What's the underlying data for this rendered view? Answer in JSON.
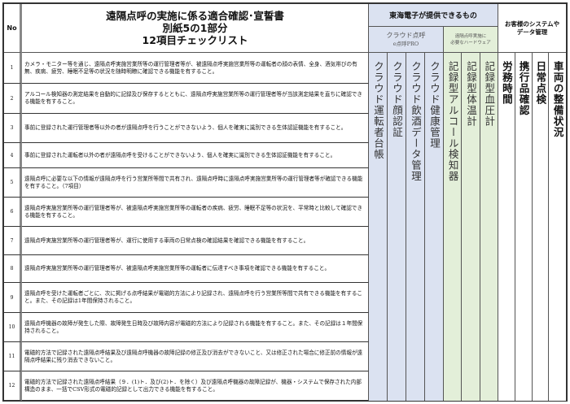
{
  "header": {
    "no_label": "No",
    "title_lines": [
      "遠隔点呼の実施に係る適合確認･宣誓書",
      "別紙5の1部分",
      "12項目チェックリスト"
    ],
    "provider_group": "東海電子が提供できるもの",
    "cloud_group": [
      "クラウド点呼",
      "e点呼PRO"
    ],
    "hardware_group": [
      "遠隔点呼実施に",
      "必要なハードウェア"
    ],
    "customer_group": [
      "お客様のシステムや",
      "データ管理"
    ]
  },
  "columns": {
    "cloud": [
      "クラウド運転者台帳",
      "クラウド顔認証",
      "クラウド飲酒データ管理",
      "クラウド健康管理"
    ],
    "hardware": [
      "記録型アルコール検知器",
      "記録型体温計",
      "記録型血圧計"
    ],
    "customer": [
      "労務時間",
      "携行品確認",
      "日常点検",
      "車両の整備状況"
    ]
  },
  "colors": {
    "cloud": "#dbe2f1",
    "hardware": "#e3efd9",
    "customer": "#ffffff"
  },
  "rows": [
    {
      "no": "1",
      "text": "カメラ・モニター等を通じ、遠隔点呼実施営業所等の運行管理者等が、被遠隔点呼実施営業所等の運転者の顔の表情、全身、酒気帯びの有無、疾病、疲労、睡眠不足等の状況を随時明瞭に確認できる機能を有すること。"
    },
    {
      "no": "2",
      "text": "アルコール検知器の測定結果を自動的に記録及び保存するとともに、遠隔点呼実施営業所等の運行管理者等が当該測定結果を直ちに確認できる機能を有すること。"
    },
    {
      "no": "3",
      "text": "事前に登録された運行管理者等以外の者が遠隔点呼を行うことができないよう、個人を確実に識別できる生体認証機能を有すること。"
    },
    {
      "no": "4",
      "text": "事前に登録された運転者以外の者が遠隔点呼を受けることができないよう、個人を確実に識別できる生体認証機能を有すること。"
    },
    {
      "no": "5",
      "text": "遠隔点呼に必要な以下の情報が遠隔点呼を行う営業所等間で共有され、遠隔点呼時に遠隔点呼実施営業所等の運行管理者等が確認できる機能を有すること。（7項目）"
    },
    {
      "no": "6",
      "text": "遠隔点呼実施営業所等の運行管理者等が、被遠隔点呼実施営業所等の運転者の疾病、疲労、睡眠不足等の状況を、平常時と比較して確認できる機能を有すること。"
    },
    {
      "no": "7",
      "text": "遠隔点呼実施営業所等の運行管理者等が、運行に使用する車両の日常点検の確認結果を確認できる機能を有すること。"
    },
    {
      "no": "8",
      "text": "遠隔点呼実施営業所等の運行管理者等が、被遠隔点呼実施営業所等の運転者に伝達すべき事項を確認できる機能を有すること。"
    },
    {
      "no": "9",
      "text": "遠隔点呼を受けた運転者ごとに、次に掲げる点呼結果が電磁的方法により記録され、遠隔点呼を行う営業所等間で共有できる機能を有すること。また、その記録は1年間保持されること。"
    },
    {
      "no": "10",
      "text": "遠隔点呼機器の故障が発生した際、故障発生日時及び故障内容が電磁的方法により記録される機能を有すること。また、その記録は１年間保持されること。"
    },
    {
      "no": "11",
      "text": "電磁的方法で記録された遠隔点呼結果及び遠隔点呼機器の故障記録の修正及び消去ができないこと、又は修正された場合に修正前の情報が遠隔点呼結果に残り消去できないこと。"
    },
    {
      "no": "12",
      "text": "電磁的方法で記録された遠隔点呼結果（９．(1)ト．及び(2)ト．を除く）及び遠隔点呼機器の故障記録が、機器・システムで保存された内部構造のまま、一括でCSV形式の電磁的記録として出力できる機能を有すること。"
    }
  ]
}
